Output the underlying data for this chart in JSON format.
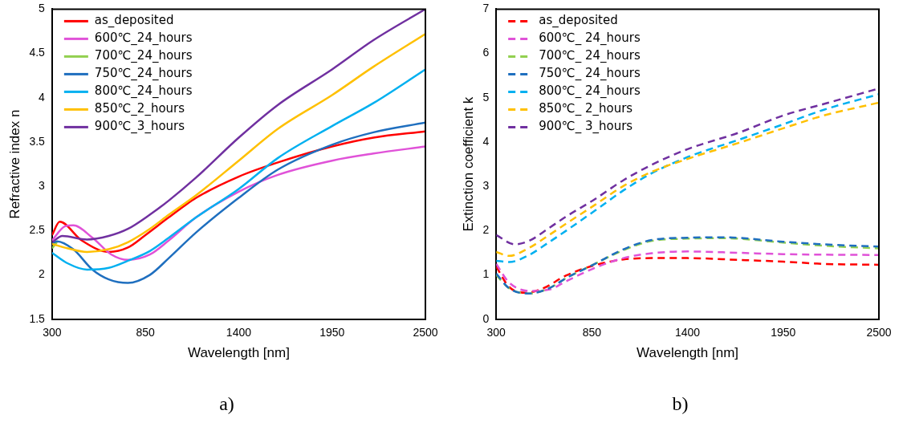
{
  "chart_data": [
    {
      "type": "line",
      "xlabel": "Wavelength [nm]",
      "ylabel": "Refractive index n",
      "xlim": [
        300,
        2500
      ],
      "xticks": [
        300,
        850,
        1400,
        1950,
        2500
      ],
      "ylim": [
        1.5,
        5
      ],
      "yticks": [
        1.5,
        2,
        2.5,
        3,
        3.5,
        4,
        4.5,
        5
      ],
      "grid": false,
      "legend": "top left",
      "line_style": "solid",
      "marker": "none",
      "annotations": [
        "a)"
      ],
      "series": [
        {
          "name": "as_deposited",
          "color": "#ff0000",
          "x": [
            300,
            345,
            474,
            634,
            747,
            850,
            988,
            1149,
            1400,
            1631,
            1950,
            2194,
            2500
          ],
          "values": [
            2.45,
            2.6,
            2.39,
            2.26,
            2.31,
            2.45,
            2.65,
            2.87,
            3.11,
            3.27,
            3.45,
            3.55,
            3.62
          ]
        },
        {
          "name": "600℃_24_hours",
          "color": "#e052d8",
          "x": [
            300,
            377,
            425,
            538,
            650,
            747,
            876,
            988,
            1149,
            1400,
            1631,
            1950,
            2194,
            2500
          ],
          "values": [
            2.39,
            2.55,
            2.56,
            2.42,
            2.23,
            2.17,
            2.23,
            2.39,
            2.65,
            2.94,
            3.13,
            3.29,
            3.37,
            3.45
          ]
        },
        {
          "name": "700℃_24_hours",
          "color": "#92d050",
          "x": [
            300,
            329
          ],
          "values": [
            2.3,
            2.37
          ]
        },
        {
          "name": "750℃_24_hours",
          "color": "#1f6fbf",
          "x": [
            300,
            329,
            425,
            538,
            634,
            747,
            876,
            988,
            1149,
            1400,
            1631,
            1950,
            2194,
            2500
          ],
          "values": [
            2.35,
            2.38,
            2.29,
            2.06,
            1.95,
            1.91,
            2.0,
            2.19,
            2.48,
            2.87,
            3.19,
            3.47,
            3.61,
            3.72
          ]
        },
        {
          "name": "800℃_24_hours",
          "color": "#00b0f0",
          "x": [
            300,
            393,
            506,
            634,
            747,
            876,
            988,
            1149,
            1400,
            1631,
            1950,
            2194,
            2500
          ],
          "values": [
            2.25,
            2.13,
            2.06,
            2.08,
            2.16,
            2.27,
            2.42,
            2.65,
            2.97,
            3.32,
            3.68,
            3.94,
            4.32
          ]
        },
        {
          "name": "850℃_2_hours",
          "color": "#ffc000",
          "x": [
            300,
            393,
            506,
            634,
            747,
            876,
            988,
            1149,
            1400,
            1631,
            1950,
            2194,
            2500
          ],
          "values": [
            2.35,
            2.3,
            2.26,
            2.29,
            2.37,
            2.52,
            2.68,
            2.9,
            3.29,
            3.65,
            4.03,
            4.35,
            4.72
          ]
        },
        {
          "name": "900℃_3_hours",
          "color": "#7030a0",
          "x": [
            300,
            361,
            506,
            634,
            747,
            876,
            988,
            1149,
            1400,
            1631,
            1950,
            2194,
            2500
          ],
          "values": [
            2.37,
            2.44,
            2.4,
            2.44,
            2.52,
            2.68,
            2.84,
            3.1,
            3.55,
            3.92,
            4.32,
            4.65,
            5.0
          ]
        }
      ]
    },
    {
      "type": "line",
      "xlabel": "Wavelength [nm]",
      "ylabel": "Extinction coefficient k",
      "xlim": [
        300,
        2500
      ],
      "xticks": [
        300,
        850,
        1400,
        1950,
        2500
      ],
      "ylim": [
        0,
        7
      ],
      "yticks": [
        0,
        1,
        2,
        3,
        4,
        5,
        6,
        7
      ],
      "grid": false,
      "legend": "top left",
      "line_style": "dashed",
      "marker": "none",
      "annotations": [
        "b)"
      ],
      "series": [
        {
          "name": "as_deposited",
          "color": "#ff0000",
          "x": [
            300,
            374,
            473,
            571,
            703,
            867,
            1032,
            1196,
            1400,
            1693,
            1950,
            2184,
            2500
          ],
          "values": [
            1.19,
            0.73,
            0.6,
            0.7,
            0.99,
            1.22,
            1.35,
            1.38,
            1.38,
            1.34,
            1.3,
            1.25,
            1.23
          ]
        },
        {
          "name": "600℃_ 24_hours",
          "color": "#e052d8",
          "x": [
            300,
            374,
            489,
            604,
            703,
            867,
            1032,
            1196,
            1400,
            1693,
            1950,
            2500
          ],
          "values": [
            1.25,
            0.83,
            0.64,
            0.67,
            0.86,
            1.16,
            1.38,
            1.49,
            1.53,
            1.5,
            1.47,
            1.45
          ]
        },
        {
          "name": "700℃_ 24_hours",
          "color": "#92d050",
          "x": [
            300,
            374,
            489,
            604,
            703,
            867,
            1032,
            1196,
            1400,
            1609,
            1950,
            2184,
            2500
          ],
          "values": [
            1.0,
            0.7,
            0.58,
            0.7,
            0.93,
            1.25,
            1.56,
            1.77,
            1.82,
            1.83,
            1.73,
            1.66,
            1.6
          ]
        },
        {
          "name": "750℃_ 24_hours",
          "color": "#1f6fbf",
          "x": [
            300,
            374,
            489,
            604,
            703,
            867,
            1032,
            1196,
            1400,
            1609,
            1950,
            2184,
            2500
          ],
          "values": [
            1.03,
            0.7,
            0.58,
            0.7,
            0.93,
            1.25,
            1.58,
            1.79,
            1.84,
            1.85,
            1.75,
            1.69,
            1.64
          ]
        },
        {
          "name": "800℃_ 24_hours",
          "color": "#00b0f0",
          "x": [
            300,
            374,
            489,
            604,
            703,
            867,
            1032,
            1196,
            1400,
            1693,
            1950,
            2184,
            2500
          ],
          "values": [
            1.32,
            1.29,
            1.45,
            1.74,
            2.0,
            2.45,
            2.91,
            3.3,
            3.66,
            4.05,
            4.4,
            4.73,
            5.08
          ]
        },
        {
          "name": "850℃_ 2_hours",
          "color": "#ffc000",
          "x": [
            300,
            374,
            489,
            604,
            703,
            867,
            1032,
            1196,
            1400,
            1693,
            1950,
            2184,
            2500
          ],
          "values": [
            1.52,
            1.43,
            1.61,
            1.9,
            2.16,
            2.58,
            3.01,
            3.33,
            3.62,
            3.98,
            4.31,
            4.6,
            4.89
          ]
        },
        {
          "name": "900℃_ 3_hours",
          "color": "#7030a0",
          "x": [
            300,
            407,
            489,
            604,
            703,
            867,
            1032,
            1196,
            1400,
            1693,
            1950,
            2184,
            2500
          ],
          "values": [
            1.9,
            1.69,
            1.77,
            2.06,
            2.32,
            2.71,
            3.14,
            3.49,
            3.84,
            4.21,
            4.6,
            4.86,
            5.21
          ]
        }
      ]
    }
  ]
}
